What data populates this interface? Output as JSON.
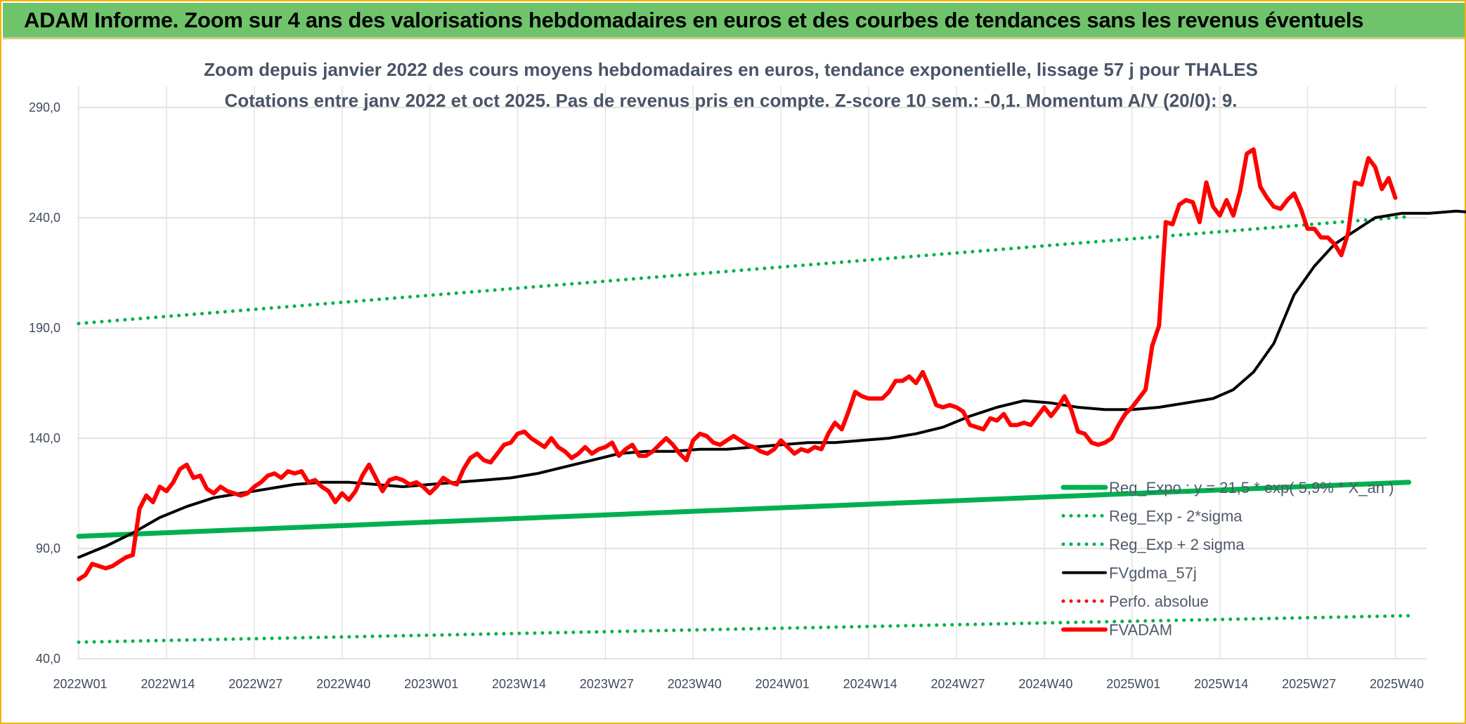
{
  "banner": {
    "title": "ADAM Informe. Zoom sur 4 ans des valorisations hebdomadaires en euros et des courbes de tendances sans les revenus éventuels"
  },
  "chart_data": {
    "type": "line",
    "title": "Zoom depuis janvier 2022 des cours moyens hebdomadaires en euros, tendance exponentielle, lissage 57 j pour THALES",
    "subtitle": "Cotations entre janv 2022 et oct 2025. Pas de revenus pris en compte. Z-score 10 sem.: -0,1. Momentum A/V (20/0): 9.",
    "xlabel": "",
    "ylabel": "",
    "ylim": [
      40,
      290
    ],
    "yticks": [
      "40,0",
      "90,0",
      "140,0",
      "190,0",
      "240,0",
      "290,0"
    ],
    "xticks": [
      "2022W01",
      "2022W14",
      "2022W27",
      "2022W40",
      "2023W01",
      "2023W14",
      "2023W27",
      "2023W40",
      "2024W01",
      "2024W14",
      "2024W27",
      "2024W40",
      "2025W01",
      "2025W14",
      "2025W27",
      "2025W40"
    ],
    "x_week_range": [
      0,
      197
    ],
    "grid": true,
    "legend_position": "bottom-right",
    "series": [
      {
        "name": "Reg_Expo : y = 21,5 * exp( 5,9% * X_an )",
        "color": "#00b050",
        "style": "solid-thick",
        "points": [
          [
            0,
            95.5
          ],
          [
            197,
            120
          ]
        ]
      },
      {
        "name": "Reg_Exp - 2*sigma",
        "color": "#00b050",
        "style": "dotted",
        "points": [
          [
            0,
            47.5
          ],
          [
            197,
            59.5
          ]
        ]
      },
      {
        "name": "Reg_Exp + 2 sigma",
        "color": "#00b050",
        "style": "dotted",
        "points": [
          [
            0,
            192
          ],
          [
            197,
            240.5
          ]
        ]
      },
      {
        "name": "FVgdma_57j",
        "color": "#000000",
        "style": "solid",
        "points": [
          [
            0,
            86
          ],
          [
            4,
            91
          ],
          [
            8,
            97
          ],
          [
            12,
            104
          ],
          [
            16,
            109
          ],
          [
            20,
            113
          ],
          [
            24,
            115
          ],
          [
            28,
            117
          ],
          [
            32,
            119
          ],
          [
            36,
            120
          ],
          [
            40,
            120
          ],
          [
            44,
            119
          ],
          [
            48,
            118
          ],
          [
            52,
            119
          ],
          [
            56,
            120
          ],
          [
            60,
            121
          ],
          [
            64,
            122
          ],
          [
            68,
            124
          ],
          [
            72,
            127
          ],
          [
            76,
            130
          ],
          [
            80,
            133
          ],
          [
            84,
            134
          ],
          [
            88,
            134
          ],
          [
            92,
            135
          ],
          [
            96,
            135
          ],
          [
            100,
            136
          ],
          [
            104,
            137
          ],
          [
            108,
            138
          ],
          [
            112,
            138
          ],
          [
            116,
            139
          ],
          [
            120,
            140
          ],
          [
            124,
            142
          ],
          [
            128,
            145
          ],
          [
            132,
            150
          ],
          [
            136,
            154
          ],
          [
            140,
            157
          ],
          [
            144,
            156
          ],
          [
            148,
            154
          ],
          [
            152,
            153
          ],
          [
            156,
            153
          ],
          [
            160,
            154
          ],
          [
            164,
            156
          ],
          [
            168,
            158
          ],
          [
            171,
            162
          ],
          [
            174,
            170
          ],
          [
            177,
            183
          ],
          [
            180,
            205
          ],
          [
            183,
            218
          ],
          [
            186,
            228
          ],
          [
            189,
            234
          ],
          [
            192,
            240
          ],
          [
            196,
            242
          ],
          [
            200,
            242
          ],
          [
            204,
            243
          ],
          [
            208,
            242
          ],
          [
            212,
            243
          ],
          [
            216,
            243
          ],
          [
            220,
            248
          ],
          [
            224,
            249
          ],
          [
            227,
            249
          ]
        ]
      },
      {
        "name": "Perfo. absolue",
        "color": "#ff0000",
        "style": "dotted",
        "points": []
      },
      {
        "name": "FVADAM",
        "color": "#ff0000",
        "style": "solid-thick",
        "points": [
          [
            0,
            76
          ],
          [
            1,
            78
          ],
          [
            2,
            83
          ],
          [
            4,
            81
          ],
          [
            5,
            82
          ],
          [
            7,
            86
          ],
          [
            8,
            87
          ],
          [
            9,
            108
          ],
          [
            10,
            114
          ],
          [
            11,
            111
          ],
          [
            12,
            118
          ],
          [
            13,
            116
          ],
          [
            14,
            120
          ],
          [
            15,
            126
          ],
          [
            16,
            128
          ],
          [
            17,
            122
          ],
          [
            18,
            123
          ],
          [
            19,
            117
          ],
          [
            20,
            115
          ],
          [
            21,
            118
          ],
          [
            22,
            116
          ],
          [
            24,
            114
          ],
          [
            25,
            115
          ],
          [
            26,
            118
          ],
          [
            27,
            120
          ],
          [
            28,
            123
          ],
          [
            29,
            124
          ],
          [
            30,
            122
          ],
          [
            31,
            125
          ],
          [
            32,
            124
          ],
          [
            33,
            125
          ],
          [
            34,
            120
          ],
          [
            35,
            121
          ],
          [
            36,
            118
          ],
          [
            37,
            116
          ],
          [
            38,
            111
          ],
          [
            39,
            115
          ],
          [
            40,
            112
          ],
          [
            41,
            116
          ],
          [
            42,
            123
          ],
          [
            43,
            128
          ],
          [
            44,
            122
          ],
          [
            45,
            116
          ],
          [
            46,
            121
          ],
          [
            47,
            122
          ],
          [
            48,
            121
          ],
          [
            49,
            119
          ],
          [
            50,
            120
          ],
          [
            51,
            118
          ],
          [
            52,
            115
          ],
          [
            53,
            118
          ],
          [
            54,
            122
          ],
          [
            55,
            120
          ],
          [
            56,
            119
          ],
          [
            57,
            126
          ],
          [
            58,
            131
          ],
          [
            59,
            133
          ],
          [
            60,
            130
          ],
          [
            61,
            129
          ],
          [
            62,
            133
          ],
          [
            63,
            137
          ],
          [
            64,
            138
          ],
          [
            65,
            142
          ],
          [
            66,
            143
          ],
          [
            67,
            140
          ],
          [
            68,
            138
          ],
          [
            69,
            136
          ],
          [
            70,
            140
          ],
          [
            71,
            136
          ],
          [
            72,
            134
          ],
          [
            73,
            131
          ],
          [
            74,
            133
          ],
          [
            75,
            136
          ],
          [
            76,
            133
          ],
          [
            77,
            135
          ],
          [
            78,
            136
          ],
          [
            79,
            138
          ],
          [
            80,
            132
          ],
          [
            81,
            135
          ],
          [
            82,
            137
          ],
          [
            83,
            132
          ],
          [
            84,
            132
          ],
          [
            85,
            134
          ],
          [
            86,
            137
          ],
          [
            87,
            140
          ],
          [
            88,
            137
          ],
          [
            89,
            133
          ],
          [
            90,
            130
          ],
          [
            91,
            139
          ],
          [
            92,
            142
          ],
          [
            93,
            141
          ],
          [
            94,
            138
          ],
          [
            95,
            137
          ],
          [
            96,
            139
          ],
          [
            97,
            141
          ],
          [
            98,
            139
          ],
          [
            99,
            137
          ],
          [
            100,
            136
          ],
          [
            101,
            134
          ],
          [
            102,
            133
          ],
          [
            103,
            135
          ],
          [
            104,
            139
          ],
          [
            105,
            136
          ],
          [
            106,
            133
          ],
          [
            107,
            135
          ],
          [
            108,
            134
          ],
          [
            109,
            136
          ],
          [
            110,
            135
          ],
          [
            111,
            142
          ],
          [
            112,
            147
          ],
          [
            113,
            144
          ],
          [
            114,
            152
          ],
          [
            115,
            161
          ],
          [
            116,
            159
          ],
          [
            117,
            158
          ],
          [
            118,
            158
          ],
          [
            119,
            158
          ],
          [
            120,
            161
          ],
          [
            121,
            166
          ],
          [
            122,
            166
          ],
          [
            123,
            168
          ],
          [
            124,
            165
          ],
          [
            125,
            170
          ],
          [
            126,
            163
          ],
          [
            127,
            155
          ],
          [
            128,
            154
          ],
          [
            129,
            155
          ],
          [
            130,
            154
          ],
          [
            131,
            152
          ],
          [
            132,
            146
          ],
          [
            133,
            145
          ],
          [
            134,
            144
          ],
          [
            135,
            149
          ],
          [
            136,
            148
          ],
          [
            137,
            151
          ],
          [
            138,
            146
          ],
          [
            139,
            146
          ],
          [
            140,
            147
          ],
          [
            141,
            146
          ],
          [
            142,
            150
          ],
          [
            143,
            154
          ],
          [
            144,
            150
          ],
          [
            145,
            154
          ],
          [
            146,
            159
          ],
          [
            147,
            153
          ],
          [
            148,
            143
          ],
          [
            149,
            142
          ],
          [
            150,
            138
          ],
          [
            151,
            137
          ],
          [
            152,
            138
          ],
          [
            153,
            140
          ],
          [
            154,
            146
          ],
          [
            155,
            151
          ],
          [
            156,
            154
          ],
          [
            157,
            158
          ],
          [
            158,
            162
          ],
          [
            159,
            182
          ],
          [
            160,
            191
          ],
          [
            161,
            238
          ],
          [
            162,
            237
          ],
          [
            163,
            246
          ],
          [
            164,
            248
          ],
          [
            165,
            247
          ],
          [
            166,
            238
          ],
          [
            167,
            256
          ],
          [
            168,
            245
          ],
          [
            169,
            241
          ],
          [
            170,
            248
          ],
          [
            171,
            241
          ],
          [
            172,
            252
          ],
          [
            173,
            269
          ],
          [
            174,
            271
          ],
          [
            175,
            254
          ],
          [
            176,
            249
          ],
          [
            177,
            245
          ],
          [
            178,
            244
          ],
          [
            179,
            248
          ],
          [
            180,
            251
          ],
          [
            181,
            244
          ],
          [
            182,
            235
          ],
          [
            183,
            235
          ],
          [
            184,
            231
          ],
          [
            185,
            231
          ],
          [
            186,
            228
          ],
          [
            187,
            223
          ],
          [
            188,
            233
          ],
          [
            189,
            256
          ],
          [
            190,
            255
          ],
          [
            191,
            267
          ],
          [
            192,
            263
          ],
          [
            193,
            253
          ],
          [
            194,
            258
          ],
          [
            195,
            249
          ]
        ]
      }
    ]
  }
}
